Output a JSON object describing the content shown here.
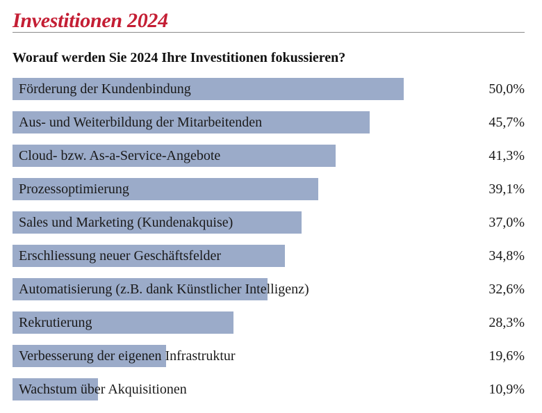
{
  "header": {
    "title": "Investitionen 2024",
    "subtitle": "Worauf werden Sie 2024 Ihre Investitionen fokussieren?"
  },
  "colors": {
    "title": "#c41e34",
    "bar": "#9babc9",
    "text": "#1a1a1a",
    "rule": "#8a8a8a"
  },
  "chart_data": {
    "type": "bar",
    "orientation": "horizontal",
    "title": "Investitionen 2024",
    "subtitle": "Worauf werden Sie 2024 Ihre Investitionen fokussieren?",
    "xlim": [
      0,
      65.5
    ],
    "grid": false,
    "legend": "none",
    "categories": [
      "Förderung der Kundenbindung",
      "Aus- und Weiterbildung der Mitarbeitenden",
      "Cloud- bzw. As-a-Service-Angebote",
      "Prozessoptimierung",
      "Sales und Marketing (Kundenakquise)",
      "Erschliessung neuer Geschäftsfelder",
      "Automatisierung (z.B. dank Künstlicher Intelligenz)",
      "Rekrutierung",
      "Verbesserung der eigenen Infrastruktur",
      "Wachstum über Akquisitionen"
    ],
    "values": [
      50.0,
      45.7,
      41.3,
      39.1,
      37.0,
      34.8,
      32.6,
      28.3,
      19.6,
      10.9
    ],
    "value_labels": [
      "50,0%",
      "45,7%",
      "41,3%",
      "39,1%",
      "37,0%",
      "34,8%",
      "32,6%",
      "28,3%",
      "19,6%",
      "10,9%"
    ]
  }
}
